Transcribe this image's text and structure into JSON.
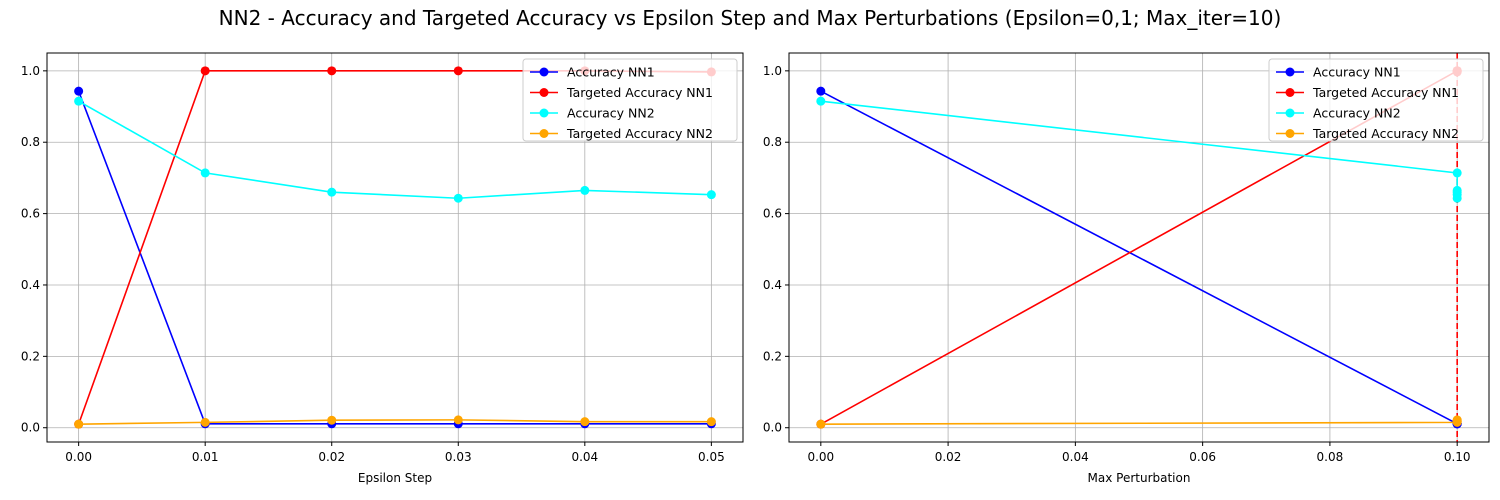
{
  "figure": {
    "title": "NN2 - Accuracy and Targeted Accuracy vs Epsilon Step and Max Perturbations (Epsilon=0,1; Max_iter=10)"
  },
  "chart_data": [
    {
      "type": "line",
      "xlabel": "Epsilon Step",
      "ylabel": "",
      "xlim": [
        -0.0025,
        0.0525
      ],
      "ylim": [
        -0.04,
        1.05
      ],
      "xticks": [
        "0.00",
        "0.01",
        "0.02",
        "0.03",
        "0.04",
        "0.05"
      ],
      "yticks": [
        "0.0",
        "0.2",
        "0.4",
        "0.6",
        "0.8",
        "1.0"
      ],
      "grid": true,
      "legend_position": "top-right",
      "x": [
        0.0,
        0.01,
        0.02,
        0.03,
        0.04,
        0.05
      ],
      "series": [
        {
          "name": "Accuracy NN1",
          "color": "#0000ff",
          "values": [
            0.943,
            0.011,
            0.011,
            0.011,
            0.011,
            0.011
          ]
        },
        {
          "name": "Targeted Accuracy NN1",
          "color": "#ff0000",
          "values": [
            0.01,
            1.0,
            1.0,
            1.0,
            1.0,
            0.997
          ]
        },
        {
          "name": "Accuracy NN2",
          "color": "#00ffff",
          "values": [
            0.915,
            0.714,
            0.66,
            0.643,
            0.665,
            0.653
          ]
        },
        {
          "name": "Targeted Accuracy NN2",
          "color": "#ffa500",
          "values": [
            0.01,
            0.015,
            0.021,
            0.022,
            0.017,
            0.017
          ]
        }
      ]
    },
    {
      "type": "line",
      "xlabel": "Max Perturbation",
      "ylabel": "",
      "xlim": [
        -0.005,
        0.105
      ],
      "ylim": [
        -0.04,
        1.05
      ],
      "xticks": [
        "0.00",
        "0.02",
        "0.04",
        "0.06",
        "0.08",
        "0.10"
      ],
      "yticks": [
        "0.0",
        "0.2",
        "0.4",
        "0.6",
        "0.8",
        "1.0"
      ],
      "grid": true,
      "legend_position": "top-right",
      "vline": {
        "x": 0.1,
        "color": "#ff0000",
        "style": "dashed"
      },
      "series": [
        {
          "name": "Accuracy NN1",
          "color": "#0000ff",
          "x": [
            0.0,
            0.1,
            0.1,
            0.1,
            0.1,
            0.1
          ],
          "values": [
            0.943,
            0.011,
            0.011,
            0.011,
            0.011,
            0.011
          ]
        },
        {
          "name": "Targeted Accuracy NN1",
          "color": "#ff0000",
          "x": [
            0.0,
            0.1,
            0.1,
            0.1,
            0.1,
            0.1
          ],
          "values": [
            0.01,
            1.0,
            1.0,
            1.0,
            1.0,
            0.997
          ]
        },
        {
          "name": "Accuracy NN2",
          "color": "#00ffff",
          "x": [
            0.0,
            0.1,
            0.1,
            0.1,
            0.1,
            0.1
          ],
          "values": [
            0.915,
            0.714,
            0.66,
            0.643,
            0.665,
            0.653
          ]
        },
        {
          "name": "Targeted Accuracy NN2",
          "color": "#ffa500",
          "x": [
            0.0,
            0.1,
            0.1,
            0.1,
            0.1,
            0.1
          ],
          "values": [
            0.01,
            0.015,
            0.021,
            0.022,
            0.017,
            0.017
          ]
        }
      ]
    }
  ]
}
